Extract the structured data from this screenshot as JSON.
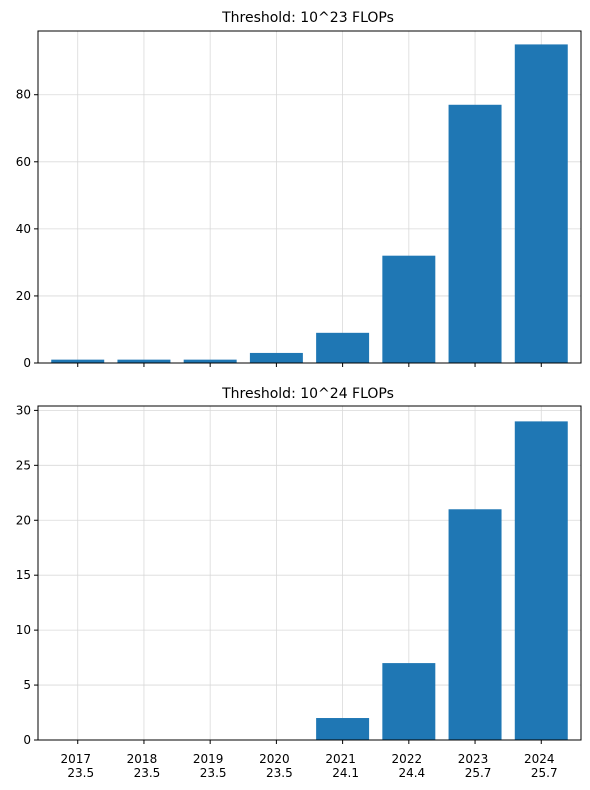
{
  "chart_data": [
    {
      "type": "bar",
      "title": "Threshold: 10^23 FLOPs",
      "categories": [
        "2017",
        "2018",
        "2019",
        "2020",
        "2021",
        "2022",
        "2023",
        "2024"
      ],
      "values": [
        1,
        1,
        1,
        3,
        9,
        32,
        77,
        95
      ],
      "ylim": [
        0,
        99
      ],
      "yticks": [
        0,
        20,
        40,
        60,
        80
      ],
      "grid": true,
      "bar_color": "#1f77b4",
      "show_xtick_labels": false
    },
    {
      "type": "bar",
      "title": "Threshold: 10^24 FLOPs",
      "categories": [
        "2017",
        "2018",
        "2019",
        "2020",
        "2021",
        "2022",
        "2023",
        "2024"
      ],
      "category_sublabels": [
        "23.5",
        "23.5",
        "23.5",
        "23.5",
        "24.1",
        "24.4",
        "25.7",
        "25.7"
      ],
      "values": [
        0,
        0,
        0,
        0,
        2,
        7,
        21,
        29
      ],
      "ylim": [
        0,
        30.4
      ],
      "yticks": [
        0,
        5,
        10,
        15,
        20,
        25,
        30
      ],
      "grid": true,
      "bar_color": "#1f77b4",
      "show_xtick_labels": true
    }
  ]
}
